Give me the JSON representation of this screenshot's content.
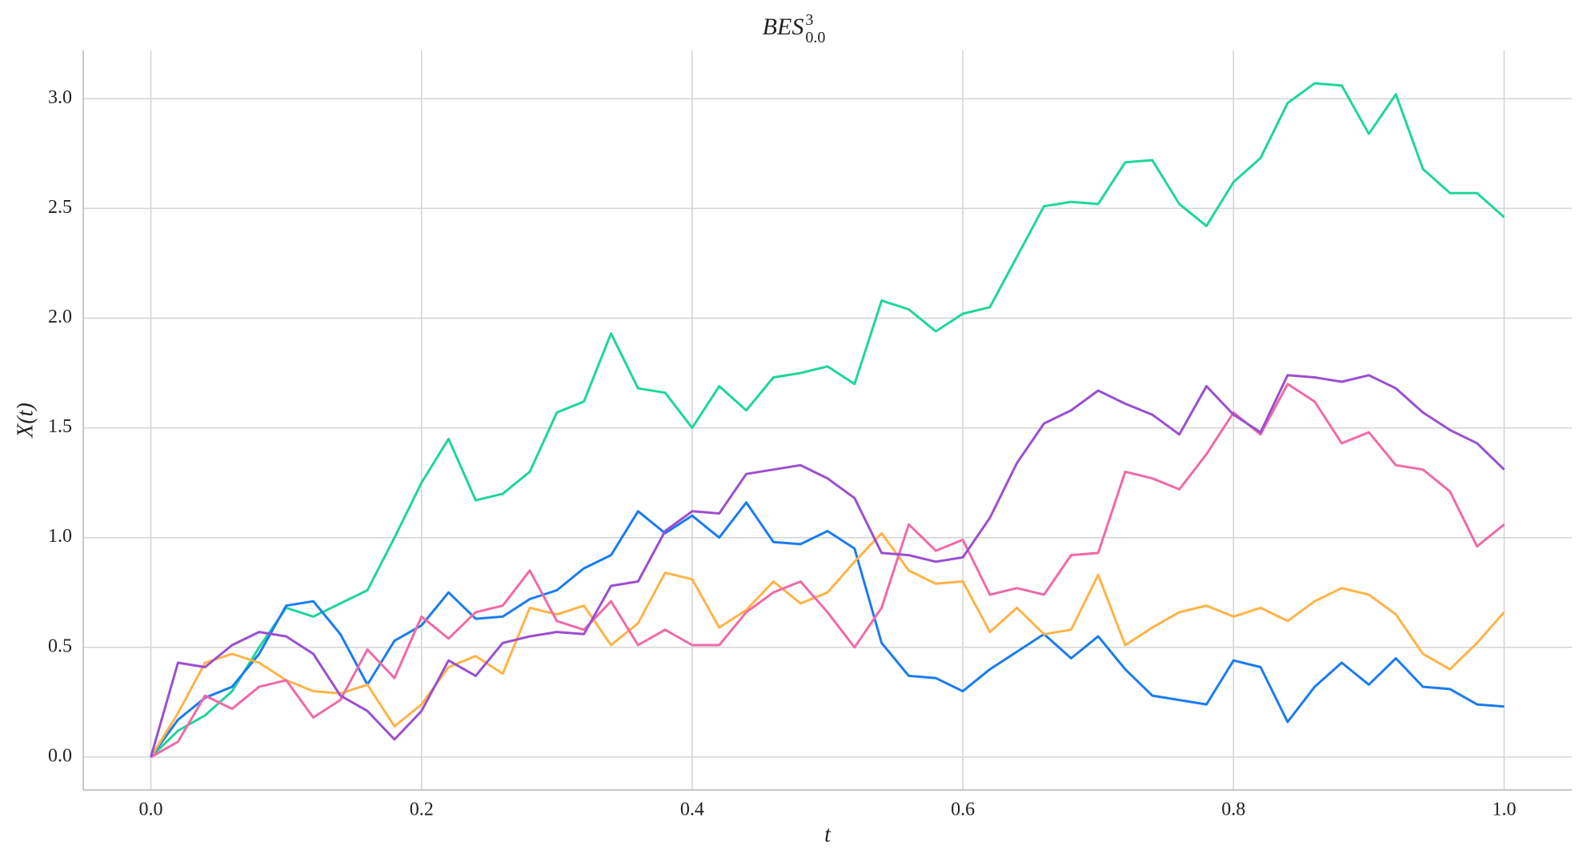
{
  "chart_data": {
    "type": "line",
    "title": {
      "base": "BES",
      "sup": "3",
      "sub": "0.0"
    },
    "xlabel": "t",
    "ylabel": "X(t)",
    "x": [
      0,
      0.02,
      0.04,
      0.06,
      0.08,
      0.1,
      0.12,
      0.14,
      0.16,
      0.18,
      0.2,
      0.22,
      0.24,
      0.26,
      0.28,
      0.3,
      0.32,
      0.34,
      0.36,
      0.38,
      0.4,
      0.42,
      0.44,
      0.46,
      0.48,
      0.5,
      0.52,
      0.54,
      0.56,
      0.58,
      0.6,
      0.62,
      0.64,
      0.66,
      0.68,
      0.7,
      0.72,
      0.74,
      0.76,
      0.78,
      0.8,
      0.82,
      0.84,
      0.86,
      0.88,
      0.9,
      0.92,
      0.94,
      0.96,
      0.98,
      1.0
    ],
    "series": [
      {
        "color": "#1fd69a",
        "values": [
          0,
          0.12,
          0.19,
          0.3,
          0.5,
          0.68,
          0.64,
          0.7,
          0.76,
          1.0,
          1.25,
          1.45,
          1.17,
          1.2,
          1.3,
          1.57,
          1.62,
          1.93,
          1.68,
          1.66,
          1.5,
          1.69,
          1.58,
          1.73,
          1.75,
          1.78,
          1.7,
          2.08,
          2.04,
          1.94,
          2.02,
          2.05,
          2.28,
          2.51,
          2.53,
          2.52,
          2.71,
          2.72,
          2.52,
          2.42,
          2.62,
          2.73,
          2.98,
          3.07,
          3.06,
          2.84,
          3.02,
          2.68,
          2.57,
          2.57,
          2.46
        ]
      },
      {
        "color": "#1a7cf0",
        "values": [
          0,
          0.17,
          0.27,
          0.32,
          0.47,
          0.69,
          0.71,
          0.56,
          0.33,
          0.53,
          0.6,
          0.75,
          0.63,
          0.64,
          0.72,
          0.76,
          0.86,
          0.92,
          1.12,
          1.02,
          1.1,
          1.0,
          1.16,
          0.98,
          0.97,
          1.03,
          0.95,
          0.52,
          0.37,
          0.36,
          0.3,
          0.4,
          0.48,
          0.56,
          0.45,
          0.55,
          0.4,
          0.28,
          0.26,
          0.24,
          0.44,
          0.41,
          0.16,
          0.32,
          0.43,
          0.33,
          0.45,
          0.32,
          0.31,
          0.24,
          0.23
        ]
      },
      {
        "color": "#ffb347",
        "values": [
          0,
          0.2,
          0.43,
          0.47,
          0.43,
          0.35,
          0.3,
          0.29,
          0.33,
          0.14,
          0.24,
          0.41,
          0.46,
          0.38,
          0.68,
          0.65,
          0.69,
          0.51,
          0.61,
          0.84,
          0.81,
          0.59,
          0.67,
          0.8,
          0.7,
          0.75,
          0.89,
          1.02,
          0.85,
          0.79,
          0.8,
          0.57,
          0.68,
          0.56,
          0.58,
          0.83,
          0.51,
          0.59,
          0.66,
          0.69,
          0.64,
          0.68,
          0.62,
          0.71,
          0.77,
          0.74,
          0.65,
          0.47,
          0.4,
          0.52,
          0.66
        ]
      },
      {
        "color": "#f06aa8",
        "values": [
          0,
          0.07,
          0.28,
          0.22,
          0.32,
          0.35,
          0.18,
          0.26,
          0.49,
          0.36,
          0.64,
          0.54,
          0.66,
          0.69,
          0.85,
          0.62,
          0.58,
          0.71,
          0.51,
          0.58,
          0.51,
          0.51,
          0.66,
          0.75,
          0.8,
          0.66,
          0.5,
          0.68,
          1.06,
          0.94,
          0.99,
          0.74,
          0.77,
          0.74,
          0.92,
          0.93,
          1.3,
          1.27,
          1.22,
          1.38,
          1.57,
          1.47,
          1.7,
          1.62,
          1.43,
          1.48,
          1.33,
          1.31,
          1.21,
          0.96,
          1.06
        ]
      },
      {
        "color": "#9b4fd0",
        "values": [
          0,
          0.43,
          0.41,
          0.51,
          0.57,
          0.55,
          0.47,
          0.28,
          0.21,
          0.08,
          0.21,
          0.44,
          0.37,
          0.52,
          0.55,
          0.57,
          0.56,
          0.78,
          0.8,
          1.03,
          1.12,
          1.11,
          1.29,
          1.31,
          1.33,
          1.27,
          1.18,
          0.93,
          0.92,
          0.89,
          0.91,
          1.09,
          1.34,
          1.52,
          1.58,
          1.67,
          1.61,
          1.56,
          1.47,
          1.69,
          1.56,
          1.48,
          1.74,
          1.73,
          1.71,
          1.74,
          1.68,
          1.57,
          1.49,
          1.43,
          1.31
        ]
      }
    ],
    "xlim": [
      -0.05,
      1.05
    ],
    "ylim": [
      -0.15,
      3.22
    ],
    "xticks": [
      {
        "value": 0,
        "label": "0.0"
      },
      {
        "value": 0.2,
        "label": "0.2"
      },
      {
        "value": 0.4,
        "label": "0.4"
      },
      {
        "value": 0.6,
        "label": "0.6"
      },
      {
        "value": 0.8,
        "label": "0.8"
      },
      {
        "value": 1.0,
        "label": "1.0"
      }
    ],
    "yticks": [
      {
        "value": 0,
        "label": "0.0"
      },
      {
        "value": 0.5,
        "label": "0.5"
      },
      {
        "value": 1.0,
        "label": "1.0"
      },
      {
        "value": 1.5,
        "label": "1.5"
      },
      {
        "value": 2.0,
        "label": "2.0"
      },
      {
        "value": 2.5,
        "label": "2.5"
      },
      {
        "value": 3.0,
        "label": "3.0"
      }
    ],
    "grid": true
  }
}
